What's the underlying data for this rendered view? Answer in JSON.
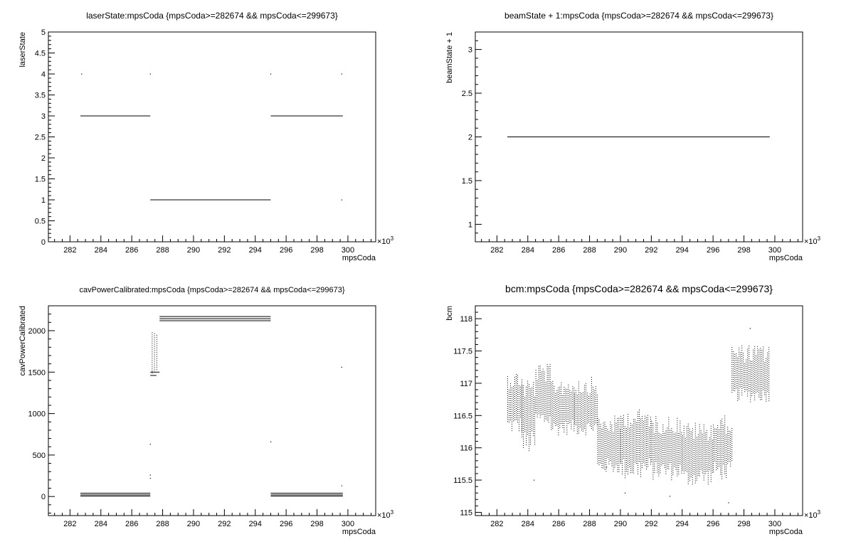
{
  "chart_data": [
    {
      "type": "scatter",
      "title": "laserState:mpsCoda {mpsCoda>=282674 && mpsCoda<=299673}",
      "xlabel": "mpsCoda",
      "ylabel": "laserState",
      "x_multiplier": "×10",
      "x_multiplier_exp": "3",
      "xlim": [
        280.6,
        301.8
      ],
      "ylim": [
        0,
        5
      ],
      "xticks": [
        "282",
        "284",
        "286",
        "288",
        "290",
        "292",
        "294",
        "296",
        "298",
        "300"
      ],
      "yticks": [
        "0",
        "0.5",
        "1",
        "1.5",
        "2",
        "2.5",
        "3",
        "3.5",
        "4",
        "4.5",
        "5"
      ],
      "segments": [
        {
          "x": [
            282.674,
            287.2
          ],
          "y": 3
        },
        {
          "x": [
            287.2,
            295.0
          ],
          "y": 1
        },
        {
          "x": [
            295.0,
            299.673
          ],
          "y": 3
        }
      ],
      "points": [
        {
          "x": 282.75,
          "y": 4
        },
        {
          "x": 287.2,
          "y": 4
        },
        {
          "x": 295.0,
          "y": 4
        },
        {
          "x": 299.6,
          "y": 4
        },
        {
          "x": 299.6,
          "y": 1
        }
      ]
    },
    {
      "type": "scatter",
      "title": "beamState + 1:mpsCoda {mpsCoda>=282674 && mpsCoda<=299673}",
      "xlabel": "mpsCoda",
      "ylabel": "beamState + 1",
      "x_multiplier": "×10",
      "x_multiplier_exp": "3",
      "xlim": [
        280.6,
        301.8
      ],
      "ylim": [
        0.8,
        3.2
      ],
      "xticks": [
        "282",
        "284",
        "286",
        "288",
        "290",
        "292",
        "294",
        "296",
        "298",
        "300"
      ],
      "yticks": [
        "1",
        "1.5",
        "2",
        "2.5",
        "3"
      ],
      "segments": [
        {
          "x": [
            282.674,
            299.673
          ],
          "y": 2
        }
      ],
      "points": []
    },
    {
      "type": "scatter",
      "title": "cavPowerCalibrated:mpsCoda {mpsCoda>=282674 && mpsCoda<=299673}",
      "xlabel": "mpsCoda",
      "ylabel": "cavPowerCalibrated",
      "x_multiplier": "×10",
      "x_multiplier_exp": "3",
      "xlim": [
        280.6,
        301.8
      ],
      "ylim": [
        -230,
        2300
      ],
      "xticks": [
        "282",
        "284",
        "286",
        "288",
        "290",
        "292",
        "294",
        "296",
        "298",
        "300"
      ],
      "yticks": [
        "0",
        "500",
        "1000",
        "1500",
        "2000"
      ],
      "segments": [
        {
          "x": [
            282.674,
            287.2
          ],
          "y": 40
        },
        {
          "x": [
            282.674,
            287.2
          ],
          "y": 20
        },
        {
          "x": [
            282.674,
            287.2
          ],
          "y": 5
        },
        {
          "x": [
            287.8,
            295.0
          ],
          "y": 2170
        },
        {
          "x": [
            287.8,
            295.0
          ],
          "y": 2145
        },
        {
          "x": [
            287.8,
            295.0
          ],
          "y": 2120
        },
        {
          "x": [
            295.0,
            299.673
          ],
          "y": 40
        },
        {
          "x": [
            295.0,
            299.673
          ],
          "y": 20
        },
        {
          "x": [
            295.0,
            299.673
          ],
          "y": 5
        },
        {
          "x": [
            287.2,
            287.8
          ],
          "y": 1500
        },
        {
          "x": [
            287.2,
            287.6
          ],
          "y": 1460
        }
      ],
      "points": [
        {
          "x": 287.2,
          "y": 630
        },
        {
          "x": 287.2,
          "y": 260
        },
        {
          "x": 287.2,
          "y": 220
        },
        {
          "x": 295.0,
          "y": 660
        },
        {
          "x": 299.6,
          "y": 1560
        },
        {
          "x": 299.6,
          "y": 130
        }
      ],
      "spikes": [
        {
          "x": 287.3,
          "y": [
            1480,
            1980
          ]
        },
        {
          "x": 287.45,
          "y": [
            1500,
            1970
          ]
        },
        {
          "x": 287.6,
          "y": [
            1520,
            1950
          ]
        }
      ]
    },
    {
      "type": "scatter",
      "title": "bcm:mpsCoda {mpsCoda>=282674 && mpsCoda<=299673}",
      "xlabel": "mpsCoda",
      "ylabel": "bcm",
      "x_multiplier": "×10",
      "x_multiplier_exp": "3",
      "xlim": [
        280.6,
        301.8
      ],
      "ylim": [
        114.95,
        118.2
      ],
      "xticks": [
        "282",
        "284",
        "286",
        "288",
        "290",
        "292",
        "294",
        "296",
        "298",
        "300"
      ],
      "yticks": [
        "115",
        "115.5",
        "116",
        "116.5",
        "117",
        "117.5",
        "118"
      ],
      "bands": [
        {
          "x": [
            282.674,
            283.6
          ],
          "center": 116.7,
          "lo": 116.2,
          "hi": 117.2
        },
        {
          "x": [
            283.6,
            284.5
          ],
          "center": 116.5,
          "lo": 115.9,
          "hi": 117.1
        },
        {
          "x": [
            284.5,
            285.5
          ],
          "center": 116.8,
          "lo": 116.3,
          "hi": 117.3
        },
        {
          "x": [
            285.5,
            287.0
          ],
          "center": 116.6,
          "lo": 116.2,
          "hi": 117.1
        },
        {
          "x": [
            287.0,
            288.5
          ],
          "center": 116.6,
          "lo": 116.2,
          "hi": 117.1
        },
        {
          "x": [
            288.5,
            290.0
          ],
          "center": 116.0,
          "lo": 115.6,
          "hi": 116.5
        },
        {
          "x": [
            290.0,
            292.0
          ],
          "center": 116.1,
          "lo": 115.5,
          "hi": 116.6
        },
        {
          "x": [
            292.0,
            294.0
          ],
          "center": 116.0,
          "lo": 115.5,
          "hi": 116.5
        },
        {
          "x": [
            294.0,
            296.0
          ],
          "center": 115.9,
          "lo": 115.4,
          "hi": 116.4
        },
        {
          "x": [
            296.0,
            297.2
          ],
          "center": 116.0,
          "lo": 115.5,
          "hi": 116.5
        },
        {
          "x": [
            297.2,
            299.673
          ],
          "center": 117.1,
          "lo": 116.7,
          "hi": 117.6
        }
      ],
      "points": [
        {
          "x": 284.4,
          "y": 115.5
        },
        {
          "x": 290.3,
          "y": 115.3
        },
        {
          "x": 297.0,
          "y": 115.15
        },
        {
          "x": 298.4,
          "y": 117.85
        },
        {
          "x": 289.1,
          "y": 115.7
        },
        {
          "x": 293.2,
          "y": 115.25
        }
      ]
    }
  ]
}
